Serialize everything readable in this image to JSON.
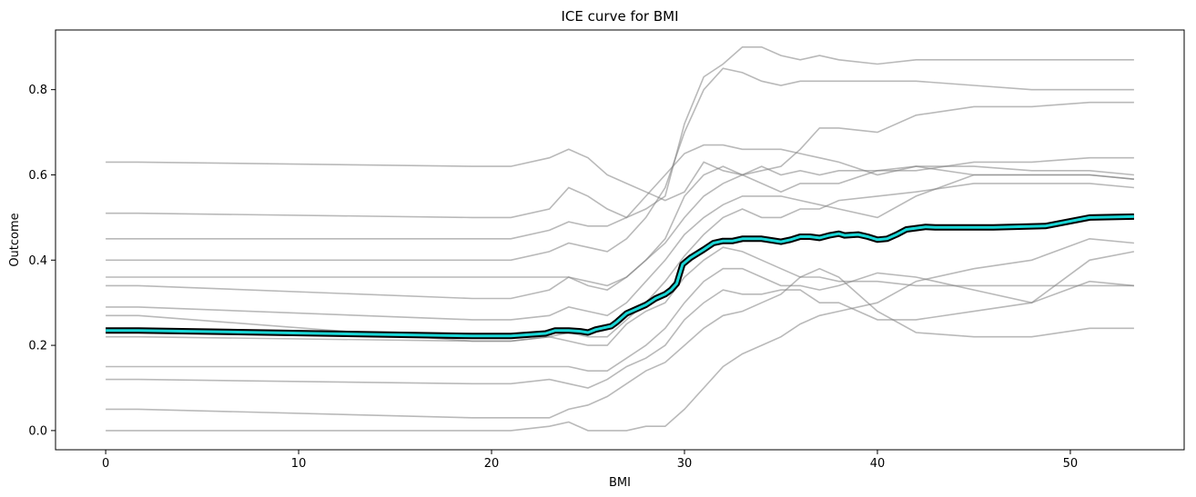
{
  "chart_data": {
    "type": "line",
    "title": "ICE curve for BMI",
    "xlabel": "BMI",
    "ylabel": "Outcome",
    "xlim": [
      -2.6,
      55.9
    ],
    "ylim": [
      -0.045,
      0.94
    ],
    "xticks": [
      0,
      10,
      20,
      30,
      40,
      50
    ],
    "yticks": [
      0.0,
      0.2,
      0.4,
      0.6,
      0.8
    ],
    "xtick_labels": [
      "0",
      "10",
      "20",
      "30",
      "40",
      "50"
    ],
    "ytick_labels": [
      "0.0",
      "0.2",
      "0.4",
      "0.6",
      "0.8"
    ],
    "grid": false,
    "colors": {
      "ice_lines": "#808080",
      "mean_line": "#1ad6d6",
      "mean_outline": "#000000"
    },
    "series": [
      {
        "role": "ice",
        "x": [
          0,
          1.7,
          19,
          21,
          23,
          24,
          25,
          26,
          27,
          28,
          29,
          30,
          31,
          32,
          33,
          34,
          35,
          36,
          37,
          38,
          40,
          42,
          45,
          48,
          51,
          53.3
        ],
        "y": [
          0.63,
          0.63,
          0.62,
          0.62,
          0.64,
          0.66,
          0.64,
          0.6,
          0.58,
          0.56,
          0.54,
          0.56,
          0.63,
          0.61,
          0.6,
          0.62,
          0.6,
          0.61,
          0.6,
          0.61,
          0.61,
          0.62,
          0.6,
          0.6,
          0.6,
          0.59
        ]
      },
      {
        "role": "ice",
        "x": [
          0,
          1.7,
          19,
          21,
          23,
          24,
          25,
          26,
          27,
          28,
          29,
          30,
          31,
          32,
          33,
          34,
          35,
          36,
          37,
          38,
          40,
          42,
          45,
          48,
          51,
          53.3
        ],
        "y": [
          0.51,
          0.51,
          0.5,
          0.5,
          0.52,
          0.57,
          0.55,
          0.52,
          0.5,
          0.55,
          0.6,
          0.65,
          0.67,
          0.67,
          0.66,
          0.66,
          0.66,
          0.65,
          0.64,
          0.63,
          0.6,
          0.62,
          0.62,
          0.61,
          0.61,
          0.6
        ]
      },
      {
        "role": "ice",
        "x": [
          0,
          1.7,
          19,
          21,
          23,
          24,
          25,
          26,
          27,
          28,
          29,
          30,
          31,
          32,
          33,
          34,
          35,
          36,
          37,
          38,
          40,
          42,
          45,
          48,
          51,
          53.3
        ],
        "y": [
          0.45,
          0.45,
          0.45,
          0.45,
          0.47,
          0.49,
          0.48,
          0.48,
          0.5,
          0.52,
          0.55,
          0.72,
          0.83,
          0.86,
          0.9,
          0.9,
          0.88,
          0.87,
          0.88,
          0.87,
          0.86,
          0.87,
          0.87,
          0.87,
          0.87,
          0.87
        ]
      },
      {
        "role": "ice",
        "x": [
          0,
          1.7,
          19,
          21,
          23,
          24,
          25,
          26,
          27,
          28,
          29,
          30,
          31,
          32,
          33,
          34,
          35,
          36,
          37,
          38,
          40,
          42,
          45,
          48,
          51,
          53.3
        ],
        "y": [
          0.4,
          0.4,
          0.4,
          0.4,
          0.42,
          0.44,
          0.43,
          0.42,
          0.45,
          0.5,
          0.57,
          0.7,
          0.8,
          0.85,
          0.84,
          0.82,
          0.81,
          0.82,
          0.82,
          0.82,
          0.82,
          0.82,
          0.81,
          0.8,
          0.8,
          0.8
        ]
      },
      {
        "role": "ice",
        "x": [
          0,
          1.7,
          19,
          21,
          23,
          24,
          25,
          26,
          27,
          28,
          29,
          30,
          31,
          32,
          33,
          34,
          35,
          36,
          37,
          38,
          40,
          42,
          45,
          48,
          51,
          53.3
        ],
        "y": [
          0.36,
          0.36,
          0.36,
          0.36,
          0.36,
          0.36,
          0.35,
          0.34,
          0.36,
          0.4,
          0.45,
          0.55,
          0.6,
          0.62,
          0.6,
          0.61,
          0.62,
          0.66,
          0.71,
          0.71,
          0.7,
          0.74,
          0.76,
          0.76,
          0.77,
          0.77
        ]
      },
      {
        "role": "ice",
        "x": [
          0,
          1.7,
          19,
          21,
          23,
          24,
          25,
          26,
          27,
          28,
          29,
          30,
          31,
          32,
          33,
          34,
          35,
          36,
          37,
          38,
          40,
          42,
          45,
          48,
          51,
          53.3
        ],
        "y": [
          0.34,
          0.34,
          0.31,
          0.31,
          0.33,
          0.36,
          0.34,
          0.33,
          0.36,
          0.4,
          0.44,
          0.5,
          0.55,
          0.58,
          0.6,
          0.58,
          0.56,
          0.58,
          0.58,
          0.58,
          0.61,
          0.61,
          0.63,
          0.63,
          0.64,
          0.64
        ]
      },
      {
        "role": "ice",
        "x": [
          0,
          1.7,
          19,
          21,
          23,
          24,
          25,
          26,
          27,
          28,
          29,
          30,
          31,
          32,
          33,
          34,
          35,
          36,
          37,
          38,
          40,
          42,
          45,
          48,
          51,
          53.3
        ],
        "y": [
          0.29,
          0.29,
          0.26,
          0.26,
          0.27,
          0.29,
          0.28,
          0.27,
          0.3,
          0.35,
          0.4,
          0.46,
          0.5,
          0.53,
          0.55,
          0.55,
          0.55,
          0.54,
          0.53,
          0.52,
          0.5,
          0.55,
          0.6,
          0.6,
          0.6,
          0.59
        ]
      },
      {
        "role": "ice",
        "x": [
          0,
          1.7,
          19,
          21,
          23,
          24,
          25,
          26,
          27,
          28,
          29,
          30,
          31,
          32,
          33,
          34,
          35,
          36,
          37,
          38,
          40,
          42,
          45,
          48,
          51,
          53.3
        ],
        "y": [
          0.27,
          0.27,
          0.21,
          0.21,
          0.22,
          0.23,
          0.22,
          0.22,
          0.26,
          0.3,
          0.35,
          0.41,
          0.46,
          0.5,
          0.52,
          0.5,
          0.5,
          0.52,
          0.52,
          0.54,
          0.55,
          0.56,
          0.58,
          0.58,
          0.58,
          0.57
        ]
      },
      {
        "role": "ice",
        "x": [
          0,
          1.7,
          19,
          21,
          23,
          24,
          25,
          26,
          27,
          28,
          29,
          30,
          31,
          32,
          33,
          34,
          35,
          36,
          37,
          38,
          40,
          42,
          45,
          48,
          51,
          53.3
        ],
        "y": [
          0.22,
          0.22,
          0.21,
          0.21,
          0.22,
          0.21,
          0.2,
          0.2,
          0.25,
          0.28,
          0.3,
          0.36,
          0.4,
          0.43,
          0.42,
          0.4,
          0.38,
          0.36,
          0.36,
          0.35,
          0.35,
          0.34,
          0.34,
          0.34,
          0.34,
          0.34
        ]
      },
      {
        "role": "ice",
        "x": [
          0,
          1.7,
          19,
          21,
          23,
          24,
          25,
          26,
          27,
          28,
          29,
          30,
          31,
          32,
          33,
          34,
          35,
          36,
          37,
          38,
          40,
          42,
          45,
          48,
          51,
          53.3
        ],
        "y": [
          0.15,
          0.15,
          0.15,
          0.15,
          0.15,
          0.15,
          0.14,
          0.14,
          0.17,
          0.2,
          0.24,
          0.3,
          0.35,
          0.38,
          0.38,
          0.36,
          0.34,
          0.34,
          0.33,
          0.34,
          0.37,
          0.36,
          0.33,
          0.3,
          0.35,
          0.34
        ]
      },
      {
        "role": "ice",
        "x": [
          0,
          1.7,
          19,
          21,
          23,
          24,
          25,
          26,
          27,
          28,
          29,
          30,
          31,
          32,
          33,
          34,
          35,
          36,
          37,
          38,
          40,
          42,
          45,
          48,
          51,
          53.3
        ],
        "y": [
          0.12,
          0.12,
          0.11,
          0.11,
          0.12,
          0.11,
          0.1,
          0.12,
          0.15,
          0.17,
          0.2,
          0.26,
          0.3,
          0.33,
          0.32,
          0.32,
          0.33,
          0.33,
          0.3,
          0.3,
          0.26,
          0.26,
          0.28,
          0.3,
          0.4,
          0.42
        ]
      },
      {
        "role": "ice",
        "x": [
          0,
          1.7,
          19,
          21,
          23,
          24,
          25,
          26,
          27,
          28,
          29,
          30,
          31,
          32,
          33,
          34,
          35,
          36,
          37,
          38,
          40,
          42,
          45,
          48,
          51,
          53.3
        ],
        "y": [
          0.05,
          0.05,
          0.03,
          0.03,
          0.03,
          0.05,
          0.06,
          0.08,
          0.11,
          0.14,
          0.16,
          0.2,
          0.24,
          0.27,
          0.28,
          0.3,
          0.32,
          0.36,
          0.38,
          0.36,
          0.28,
          0.23,
          0.22,
          0.22,
          0.24,
          0.24
        ]
      },
      {
        "role": "ice",
        "x": [
          0,
          1.7,
          19,
          21,
          23,
          24,
          25,
          26,
          27,
          28,
          29,
          30,
          31,
          32,
          33,
          34,
          35,
          36,
          37,
          38,
          40,
          42,
          45,
          48,
          51,
          53.3
        ],
        "y": [
          0.0,
          0.0,
          0.0,
          0.0,
          0.01,
          0.02,
          0.0,
          0.0,
          0.0,
          0.01,
          0.01,
          0.05,
          0.1,
          0.15,
          0.18,
          0.2,
          0.22,
          0.25,
          0.27,
          0.28,
          0.3,
          0.35,
          0.38,
          0.4,
          0.45,
          0.44
        ]
      },
      {
        "role": "mean",
        "x": [
          0,
          1.7,
          19,
          21,
          22.8,
          23.3,
          24,
          24.6,
          25,
          25.4,
          25.7,
          26.2,
          26.5,
          27,
          27.5,
          28,
          28.5,
          29,
          29.3,
          29.6,
          29.9,
          30.3,
          31,
          31.5,
          32,
          32.5,
          33,
          33.5,
          34,
          35,
          35.5,
          36,
          36.5,
          37,
          37.5,
          38,
          38.3,
          39,
          39.5,
          40,
          40.5,
          41,
          41.5,
          42,
          42.5,
          43,
          46,
          48.7,
          51,
          53.3
        ],
        "y": [
          0.235,
          0.235,
          0.222,
          0.222,
          0.228,
          0.235,
          0.235,
          0.233,
          0.23,
          0.237,
          0.24,
          0.245,
          0.255,
          0.275,
          0.285,
          0.295,
          0.31,
          0.32,
          0.33,
          0.345,
          0.39,
          0.405,
          0.425,
          0.44,
          0.445,
          0.445,
          0.45,
          0.45,
          0.45,
          0.443,
          0.448,
          0.455,
          0.455,
          0.452,
          0.458,
          0.462,
          0.458,
          0.46,
          0.455,
          0.448,
          0.45,
          0.46,
          0.472,
          0.475,
          0.478,
          0.477,
          0.477,
          0.48,
          0.5,
          0.502
        ]
      }
    ]
  }
}
